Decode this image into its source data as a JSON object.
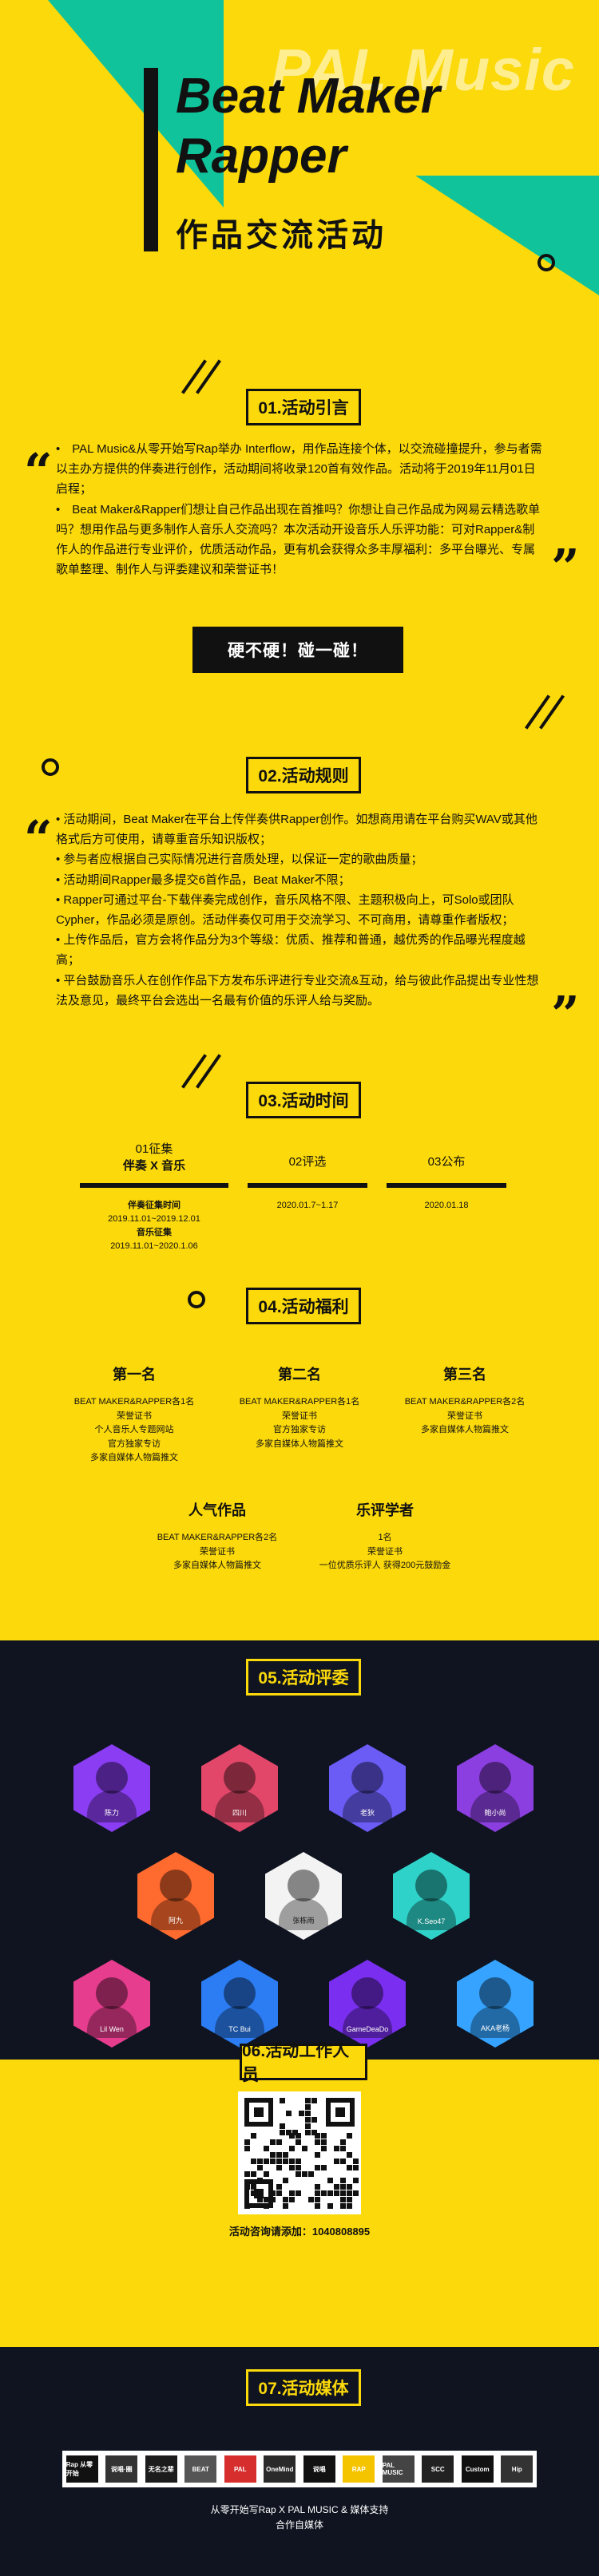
{
  "hero": {
    "watermark": "PAL Music",
    "title_line1": "Beat Maker",
    "title_line2": "Rapper",
    "subtitle": "作品交流活动"
  },
  "sections": {
    "s1": "01.活动引言",
    "s2": "02.活动规则",
    "s3": "03.活动时间",
    "s4": "04.活动福利",
    "s5": "05.活动评委",
    "s6": "06.活动工作人员",
    "s7": "07.活动媒体"
  },
  "intro": {
    "p1": "•　PAL Music&从零开始写Rap举办 Interflow，用作品连接个体，以交流碰撞提升，参与者需以主办方提供的伴奏进行创作，活动期间将收录120首有效作品。活动将于2019年11月01日启程；",
    "p2": "•　Beat Maker&Rapper们想让自己作品出现在首推吗？你想让自己作品成为网易云精选歌单吗？想用作品与更多制作人音乐人交流吗？本次活动开设音乐人乐评功能：可对Rapper&制作人的作品进行专业评价，优质活动作品，更有机会获得众多丰厚福利：多平台曝光、专属歌单整理、制作人与评委建议和荣誉证书！",
    "button": "硬不硬！碰一碰！"
  },
  "rules": {
    "items": [
      "• 活动期间，Beat Maker在平台上传伴奏供Rapper创作。如想商用请在平台购买WAV或其他格式后方可使用，请尊重音乐知识版权；",
      "• 参与者应根据自己实际情况进行音质处理，以保证一定的歌曲质量；",
      "• 活动期间Rapper最多提交6首作品，Beat Maker不限；",
      "• Rapper可通过平台-下载伴奏完成创作，音乐风格不限、主题积极向上，可Solo或团队Cypher，作品必须是原创。活动伴奏仅可用于交流学习、不可商用，请尊重作者版权；",
      "• 上传作品后，官方会将作品分为3个等级：优质、推荐和普通，越优秀的作品曝光程度越高；",
      "• 平台鼓励音乐人在创作作品下方发布乐评进行专业交流&互动，给与彼此作品提出专业性想法及意见，最终平台会选出一名最有价值的乐评人给与奖励。"
    ]
  },
  "timeline": {
    "steps": [
      {
        "label": "01征集",
        "sub": "伴奏 X 音乐"
      },
      {
        "label": "02评选",
        "sub": ""
      },
      {
        "label": "03公布",
        "sub": ""
      }
    ],
    "collect_title": "伴奏征集时间",
    "collect_date1": "2019.11.01~2019.12.01",
    "music_title": "音乐征集",
    "collect_date2": "2019.11.01~2020.1.06",
    "review_date": "2020.01.7~1.17",
    "publish_date": "2020.01.18"
  },
  "benefits": {
    "first": {
      "title": "第一名",
      "lines": [
        "BEAT MAKER&RAPPER各1名",
        "荣誉证书",
        "个人音乐人专题网站",
        "官方独家专访",
        "多家自媒体人物篇推文"
      ]
    },
    "second": {
      "title": "第二名",
      "lines": [
        "BEAT MAKER&RAPPER各1名",
        "荣誉证书",
        "官方独家专访",
        "多家自媒体人物篇推文"
      ]
    },
    "third": {
      "title": "第三名",
      "lines": [
        "BEAT MAKER&RAPPER各2名",
        "荣誉证书",
        "多家自媒体人物篇推文"
      ]
    },
    "popular": {
      "title": "人气作品",
      "lines": [
        "BEAT MAKER&RAPPER各2名",
        "荣誉证书",
        "多家自媒体人物篇推文"
      ]
    },
    "critic": {
      "title": "乐评学者",
      "lines": [
        "1名",
        "荣誉证书",
        "一位优质乐评人 获得200元鼓励金"
      ]
    }
  },
  "judges": [
    {
      "name": "陈力",
      "color": "#8a3df2"
    },
    {
      "name": "四川",
      "color": "#e2476a"
    },
    {
      "name": "老狄",
      "color": "#6a5cf5"
    },
    {
      "name": "鲍小尚",
      "color": "#8c3fe0"
    },
    {
      "name": "阿九",
      "color": "#ff6a2f"
    },
    {
      "name": "张栋雨",
      "color": "#f3f3f3"
    },
    {
      "name": "K.Seo47",
      "color": "#2fd2c9"
    },
    {
      "name": "Lil Wen",
      "color": "#e73d8e"
    },
    {
      "name": "TC Bui",
      "color": "#2c7df3"
    },
    {
      "name": "GameDeaDo",
      "color": "#7a2ff0"
    },
    {
      "name": "AKA老杨",
      "color": "#35a3ff"
    }
  ],
  "staff": {
    "contact": "活动咨询请添加：1040808895"
  },
  "media": {
    "logos": [
      "Rap 从零开始",
      "说唱·圈",
      "无名之辈",
      "BEAT",
      "PAL",
      "OneMind",
      "说唱",
      "RAP",
      "PAL MUSIC",
      "SCC",
      "Custom",
      "Hip"
    ],
    "footer1": "从零开始写Rap X PAL MUSIC & 媒体支持",
    "footer2": "合作自媒体"
  },
  "colors": {
    "bg": "#fcd90a",
    "accent": "#11c39a",
    "dark": "#0f1420",
    "ink": "#111111"
  }
}
